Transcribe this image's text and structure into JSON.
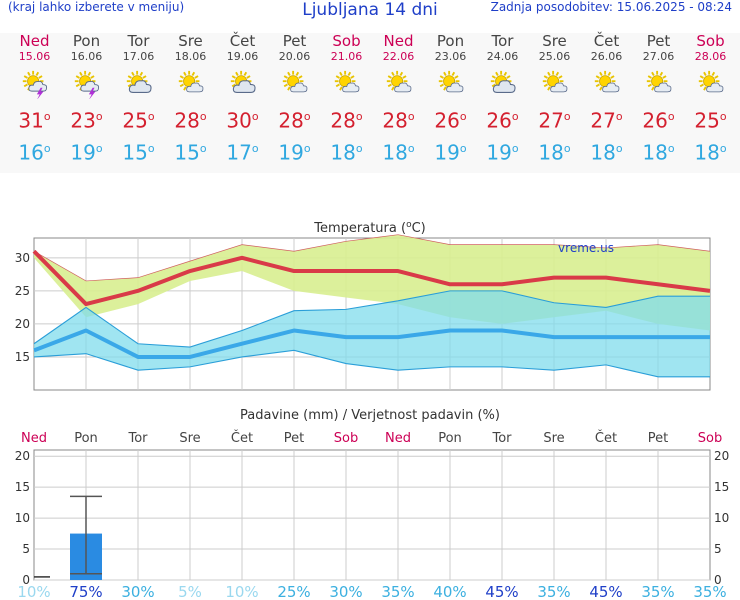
{
  "header": {
    "menu_note": "(kraj lahko izberete v meniju)",
    "title": "Ljubljana 14 dni",
    "updated": "Zadnja posodobitev: 15.06.2025 - 08:24"
  },
  "units": {
    "degree": "o"
  },
  "days": [
    {
      "name": "Ned",
      "date": "15.06",
      "icon": "sun-cloud-storm-icon",
      "max": "31",
      "min": "16",
      "weekend": true
    },
    {
      "name": "Pon",
      "date": "16.06",
      "icon": "sun-cloud-storm-icon",
      "max": "23",
      "min": "19",
      "weekend": false
    },
    {
      "name": "Tor",
      "date": "17.06",
      "icon": "cloudy-sun-icon",
      "max": "25",
      "min": "15",
      "weekend": false
    },
    {
      "name": "Sre",
      "date": "18.06",
      "icon": "sun-cloud-icon",
      "max": "28",
      "min": "15",
      "weekend": false
    },
    {
      "name": "Čet",
      "date": "19.06",
      "icon": "cloudy-sun-icon",
      "max": "30",
      "min": "17",
      "weekend": false
    },
    {
      "name": "Pet",
      "date": "20.06",
      "icon": "sun-cloud-icon",
      "max": "28",
      "min": "19",
      "weekend": false
    },
    {
      "name": "Sob",
      "date": "21.06",
      "icon": "sun-cloud-icon",
      "max": "28",
      "min": "18",
      "weekend": true
    },
    {
      "name": "Ned",
      "date": "22.06",
      "icon": "sun-cloud-icon",
      "max": "28",
      "min": "18",
      "weekend": true
    },
    {
      "name": "Pon",
      "date": "23.06",
      "icon": "sun-cloud-icon",
      "max": "26",
      "min": "19",
      "weekend": false
    },
    {
      "name": "Tor",
      "date": "24.06",
      "icon": "cloudy-sun-icon",
      "max": "26",
      "min": "19",
      "weekend": false
    },
    {
      "name": "Sre",
      "date": "25.06",
      "icon": "sun-cloud-icon",
      "max": "27",
      "min": "18",
      "weekend": false
    },
    {
      "name": "Čet",
      "date": "26.06",
      "icon": "sun-cloud-icon",
      "max": "27",
      "min": "18",
      "weekend": false
    },
    {
      "name": "Pet",
      "date": "27.06",
      "icon": "sun-cloud-icon",
      "max": "26",
      "min": "18",
      "weekend": false
    },
    {
      "name": "Sob",
      "date": "28.06",
      "icon": "sun-cloud-icon",
      "max": "25",
      "min": "18",
      "weekend": true
    }
  ],
  "colors": {
    "max_line": "#d93a48",
    "min_line": "#3aa8e8",
    "max_band": "#d8ee90",
    "min_band": "#80dcec",
    "overlap_band": "#80d080",
    "weekend": "#cc0055",
    "weekday": "#444444",
    "bar": "#2a8be2",
    "prob_high": "#1f3fc8",
    "prob_mid": "#3cb0e0",
    "prob_low": "#9ad8ef"
  },
  "chart_data": [
    {
      "type": "line",
      "title": "Temperatura (°C)",
      "title_prefix": "Temperatura (",
      "title_unit": "C)",
      "watermark": "vreme.us",
      "categories": [
        "15.06",
        "16.06",
        "17.06",
        "18.06",
        "19.06",
        "20.06",
        "21.06",
        "22.06",
        "23.06",
        "24.06",
        "25.06",
        "26.06",
        "27.06",
        "28.06"
      ],
      "ylim": [
        10,
        33
      ],
      "yticks": [
        15,
        20,
        25,
        30
      ],
      "series": [
        {
          "name": "max",
          "values": [
            31,
            23,
            25,
            28,
            30,
            28,
            28,
            28,
            26,
            26,
            27,
            27,
            26,
            25
          ]
        },
        {
          "name": "max_high",
          "values": [
            31,
            26.5,
            27,
            29.5,
            32,
            31,
            32.5,
            33.5,
            32,
            32,
            32,
            31.5,
            32,
            31
          ]
        },
        {
          "name": "max_low",
          "values": [
            30,
            21,
            23,
            26.5,
            28,
            25,
            24,
            23,
            21,
            20,
            21,
            22,
            20,
            19
          ]
        },
        {
          "name": "min",
          "values": [
            16,
            19,
            15,
            15,
            17,
            19,
            18,
            18,
            19,
            19,
            18,
            18,
            18,
            18
          ]
        },
        {
          "name": "min_high",
          "values": [
            17,
            22.5,
            17,
            16.5,
            19,
            22,
            22.2,
            23.5,
            25,
            25,
            23.2,
            22.5,
            24.2,
            24.2
          ]
        },
        {
          "name": "min_low",
          "values": [
            15,
            15.5,
            13,
            13.5,
            15,
            16,
            14,
            13,
            13.5,
            13.5,
            13,
            13.8,
            12,
            12
          ]
        }
      ]
    },
    {
      "type": "bar",
      "title": "Padavine (mm) / Verjetnost padavin (%)",
      "categories": [
        "15.06",
        "16.06",
        "17.06",
        "18.06",
        "19.06",
        "20.06",
        "21.06",
        "22.06",
        "23.06",
        "24.06",
        "25.06",
        "26.06",
        "27.06",
        "28.06"
      ],
      "ylim": [
        0,
        21
      ],
      "yticks": [
        0,
        5,
        10,
        15,
        20
      ],
      "values": [
        0.5,
        7.5,
        0,
        0,
        0,
        0,
        0,
        0,
        0,
        0,
        0,
        0,
        0,
        0
      ],
      "error_high": [
        0.5,
        13.5,
        null,
        null,
        null,
        null,
        null,
        null,
        null,
        null,
        null,
        null,
        null,
        null
      ],
      "error_low": [
        0,
        1,
        null,
        null,
        null,
        null,
        null,
        null,
        null,
        null,
        null,
        null,
        null,
        null
      ],
      "probabilities": [
        "10%",
        "75%",
        "30%",
        "5%",
        "10%",
        "25%",
        "30%",
        "35%",
        "40%",
        "45%",
        "35%",
        "45%",
        "35%",
        "35%"
      ],
      "probability_values": [
        10,
        75,
        30,
        5,
        10,
        25,
        30,
        35,
        40,
        45,
        35,
        45,
        35,
        35
      ]
    }
  ]
}
